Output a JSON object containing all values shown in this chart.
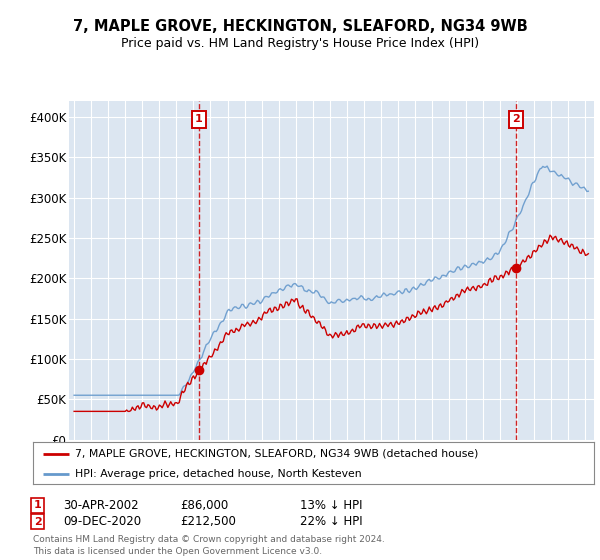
{
  "title1": "7, MAPLE GROVE, HECKINGTON, SLEAFORD, NG34 9WB",
  "title2": "Price paid vs. HM Land Registry's House Price Index (HPI)",
  "bg_color": "#dce6f1",
  "grid_color": "#ffffff",
  "hpi_color": "#6699cc",
  "price_color": "#cc0000",
  "ylim": [
    0,
    420000
  ],
  "yticks": [
    0,
    50000,
    100000,
    150000,
    200000,
    250000,
    300000,
    350000,
    400000
  ],
  "ytick_labels": [
    "£0",
    "£50K",
    "£100K",
    "£150K",
    "£200K",
    "£250K",
    "£300K",
    "£350K",
    "£400K"
  ],
  "legend_label_price": "7, MAPLE GROVE, HECKINGTON, SLEAFORD, NG34 9WB (detached house)",
  "legend_label_hpi": "HPI: Average price, detached house, North Kesteven",
  "annotation1_date": "30-APR-2002",
  "annotation1_price": "£86,000",
  "annotation1_pct": "13% ↓ HPI",
  "annotation2_date": "09-DEC-2020",
  "annotation2_price": "£212,500",
  "annotation2_pct": "22% ↓ HPI",
  "footer": "Contains HM Land Registry data © Crown copyright and database right 2024.\nThis data is licensed under the Open Government Licence v3.0.",
  "marker1_year": 2002.33,
  "marker1_price": 86000,
  "marker2_year": 2020.93,
  "marker2_price": 212500,
  "xlim_left": 1994.7,
  "xlim_right": 2025.5
}
